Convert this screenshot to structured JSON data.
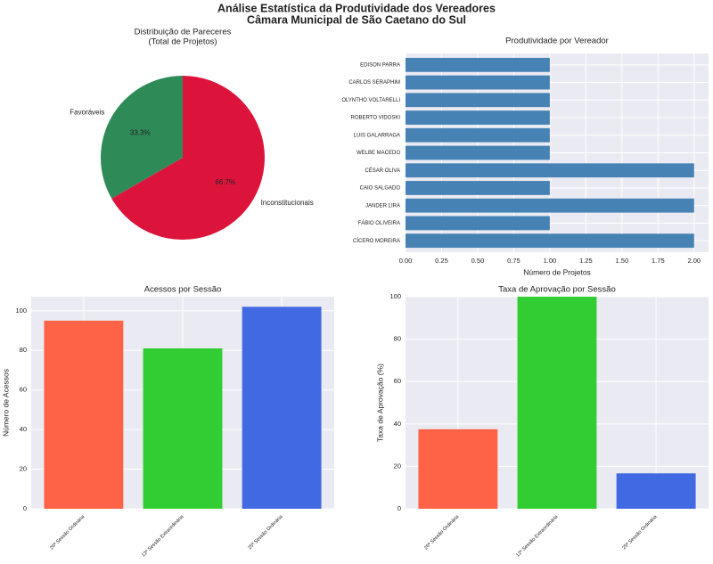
{
  "title": [
    "Análise Estatística da Produtividade dos Vereadores",
    "Câmara Municipal de São Caetano do Sul"
  ],
  "chart_data": [
    {
      "type": "pie",
      "title": [
        "Distribuição de Pareceres",
        "(Total de Projetos)"
      ],
      "categories": [
        "Favoráveis",
        "Inconstitucionais"
      ],
      "values": [
        33.3,
        66.7
      ],
      "value_labels": [
        "33.3%",
        "66.7%"
      ],
      "colors": [
        "#2e8b57",
        "#dc143c"
      ]
    },
    {
      "type": "bar",
      "orientation": "horizontal",
      "title": "Produtividade por Vereador",
      "xlabel": "Número de Projetos",
      "categories": [
        "EDISON PARRA",
        "CARLOS SERAPHIM",
        "OLYNTHO VOLTARELLI",
        "ROBERTO VIDOSKI",
        "LUIS GALARRAGA",
        "WELBE MACEDO",
        "CÉSAR OLIVA",
        "CAIO SALGADO",
        "JANDER LIRA",
        "FÁBIO OLIVEIRA",
        "CÍCERO MOREIRA"
      ],
      "values": [
        1,
        1,
        1,
        1,
        1,
        1,
        2,
        1,
        2,
        1,
        2
      ],
      "color": "#4682b4",
      "xlim": [
        0,
        2.1
      ],
      "xticks": [
        {
          "value": 0,
          "label": "0.00"
        },
        {
          "value": 0.25,
          "label": "0.25"
        },
        {
          "value": 0.5,
          "label": "0.50"
        },
        {
          "value": 0.75,
          "label": "0.75"
        },
        {
          "value": 1,
          "label": "1.00"
        },
        {
          "value": 1.25,
          "label": "1.25"
        },
        {
          "value": 1.5,
          "label": "1.50"
        },
        {
          "value": 1.75,
          "label": "1.75"
        },
        {
          "value": 2,
          "label": "2.00"
        }
      ],
      "grid": true
    },
    {
      "type": "bar",
      "title": "Acessos por Sessão",
      "ylabel": "Número de Acessos",
      "categories": [
        "26ª Sessão Ordinária",
        "12ª Sessão Extraordinária",
        "25ª Sessão Ordinária"
      ],
      "values": [
        95,
        81,
        102
      ],
      "colors": [
        "#ff6347",
        "#32cd32",
        "#4169e1"
      ],
      "ylim": [
        0,
        107.1
      ],
      "yticks": [
        0,
        20,
        40,
        60,
        80,
        100
      ],
      "grid": true
    },
    {
      "type": "bar",
      "title": "Taxa de Aprovação por Sessão",
      "ylabel": "Taxa de Aprovação (%)",
      "categories": [
        "26ª Sessão Ordinária",
        "12ª Sessão Extraordinária",
        "25ª Sessão Ordinária"
      ],
      "values": [
        37.5,
        100,
        16.7
      ],
      "colors": [
        "#ff6347",
        "#32cd32",
        "#4169e1"
      ],
      "ylim": [
        0,
        100
      ],
      "yticks": [
        0,
        20,
        40,
        60,
        80,
        100
      ],
      "grid": true
    }
  ]
}
